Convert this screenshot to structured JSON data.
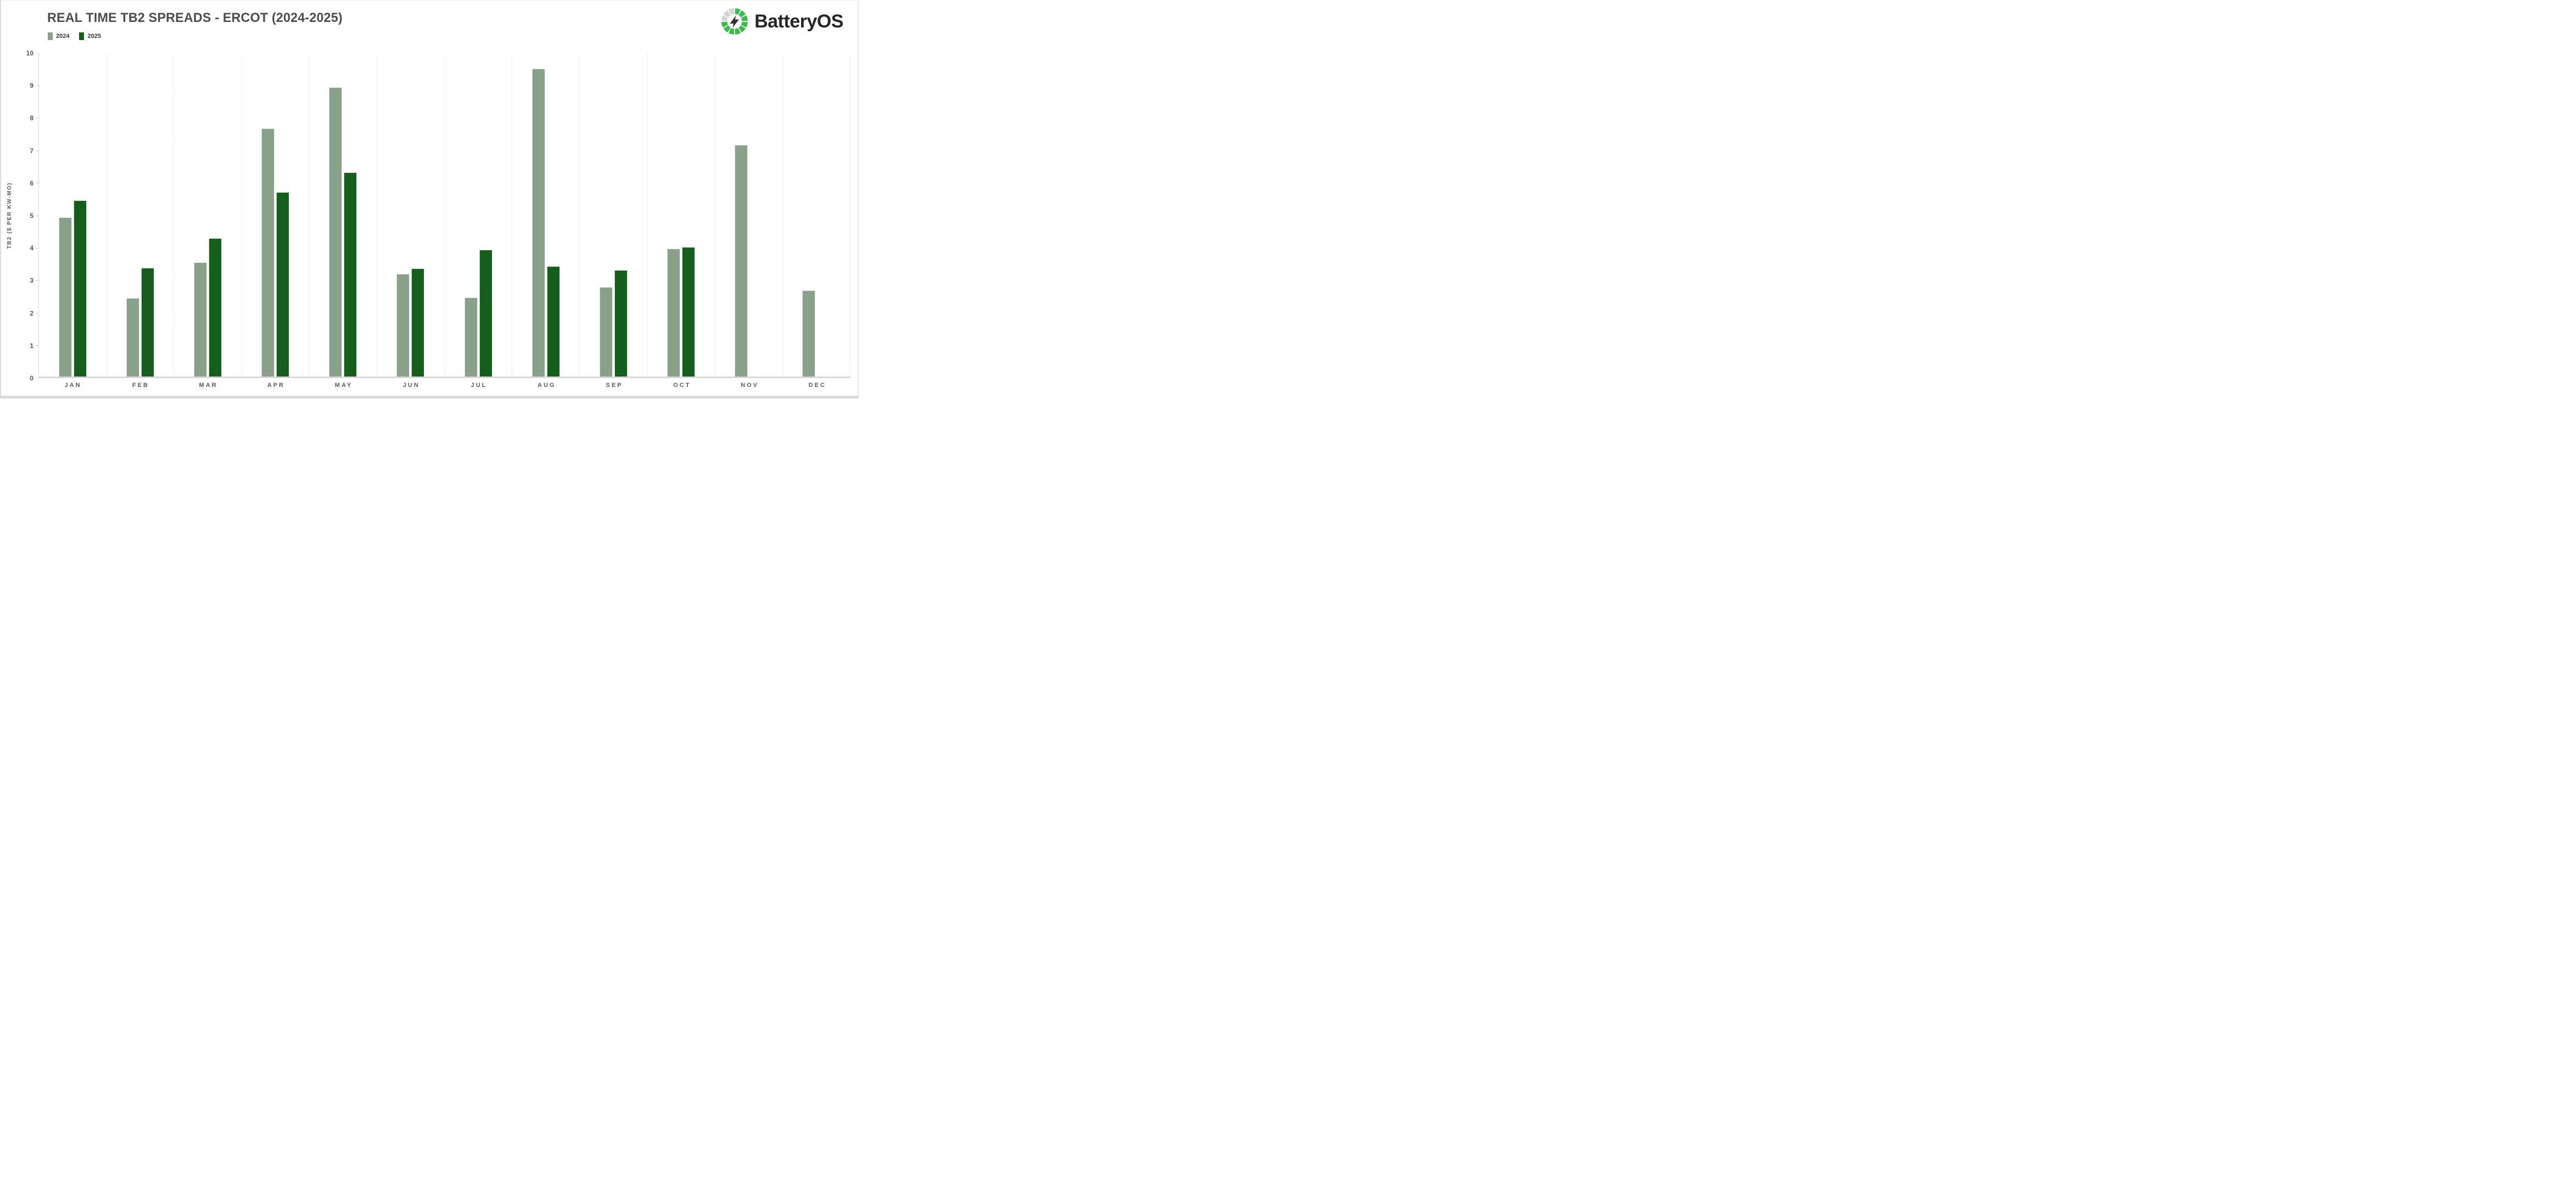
{
  "header": {
    "title": "REAL TIME TB2 SPREADS - ERCOT (2024-2025)"
  },
  "legend": [
    {
      "label": "2024",
      "color": "#89A08A"
    },
    {
      "label": "2025",
      "color": "#155E1D"
    }
  ],
  "logo": {
    "text": "BatteryOS",
    "ring_green": "#3DBB4E",
    "ring_gray": "#d4d4d4"
  },
  "chart": {
    "y_axis_label": "TB2 ($ PER KW-MO)",
    "y_ticks": [
      10,
      9,
      8,
      7,
      6,
      5,
      4,
      3,
      2,
      1,
      0
    ]
  },
  "chart_data": {
    "type": "bar",
    "title": "REAL TIME TB2 SPREADS - ERCOT (2024-2025)",
    "categories": [
      "JAN",
      "FEB",
      "MAR",
      "APR",
      "MAY",
      "JUN",
      "JUL",
      "AUG",
      "SEP",
      "OCT",
      "NOV",
      "DEC"
    ],
    "series": [
      {
        "name": "2024",
        "color": "#89A08A",
        "values": [
          4.9,
          2.42,
          3.51,
          7.64,
          8.9,
          3.16,
          2.44,
          9.48,
          2.75,
          3.94,
          7.13,
          2.65
        ]
      },
      {
        "name": "2025",
        "color": "#155E1D",
        "values": [
          5.43,
          3.35,
          4.25,
          5.67,
          6.28,
          3.32,
          3.9,
          3.4,
          3.27,
          3.98,
          null,
          null
        ]
      }
    ],
    "xlabel": "",
    "ylabel": "TB2 ($ PER KW-MO)",
    "ylim": [
      0,
      10
    ],
    "grid": "vertical dotted month separators only",
    "legend_position": "top-left"
  }
}
